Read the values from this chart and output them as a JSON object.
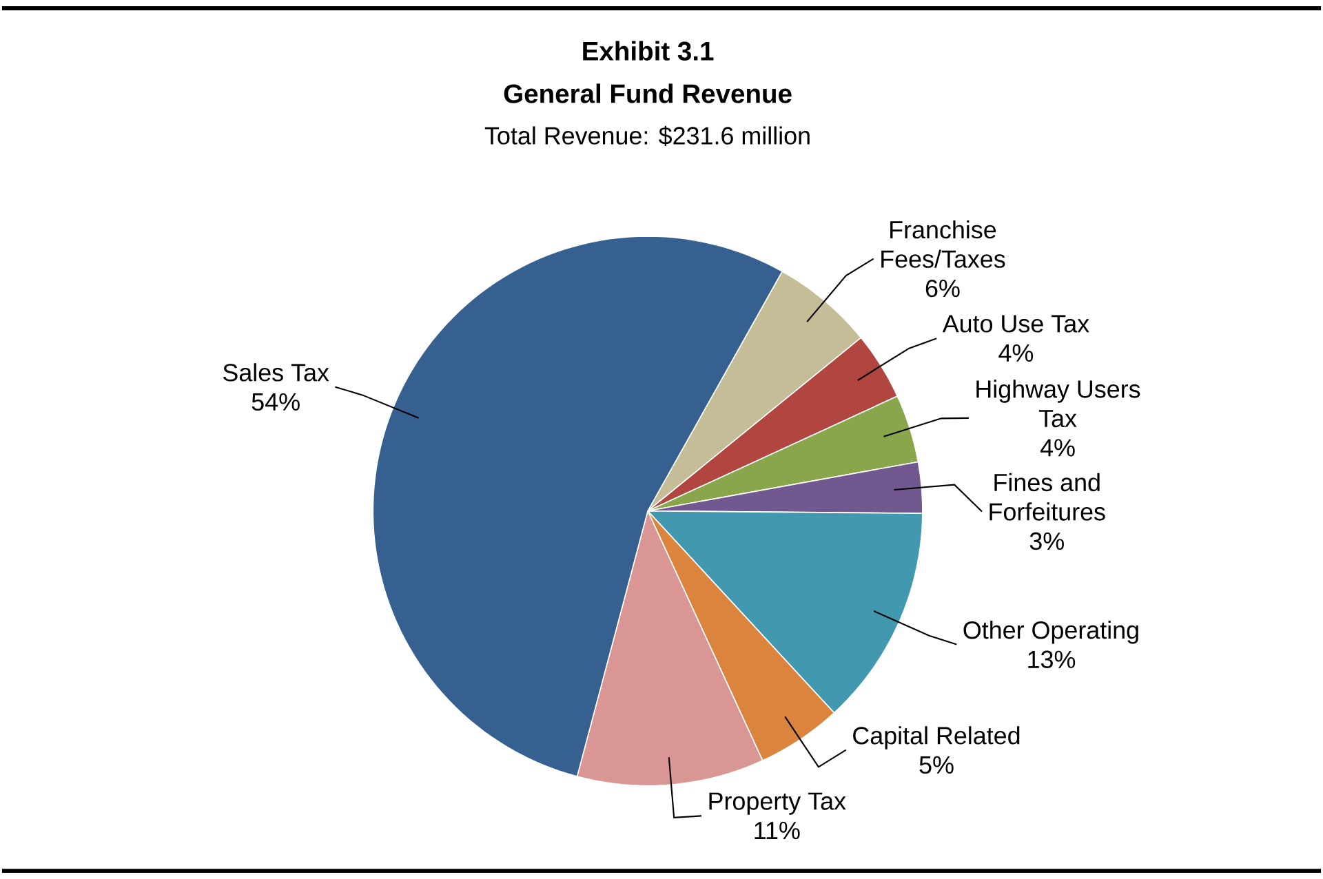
{
  "chart_data": {
    "type": "pie",
    "title": "Exhibit 3.1",
    "subtitle": "General Fund Revenue",
    "annotations": [
      "Total Revenue: $231.6 million"
    ],
    "categories": [
      "Franchise Fees/Taxes",
      "Auto Use Tax",
      "Highway Users Tax",
      "Fines and Forfeitures",
      "Other Operating",
      "Capital Related",
      "Property Tax",
      "Sales Tax"
    ],
    "values": [
      6,
      4,
      4,
      3,
      13,
      5,
      11,
      54
    ],
    "value_labels": [
      "6%",
      "4%",
      "4%",
      "3%",
      "13%",
      "5%",
      "11%",
      "54%"
    ],
    "colors": [
      "#c4bd97",
      "#b0463f",
      "#8aa64c",
      "#71588f",
      "#4198af",
      "#db843d",
      "#d99694",
      "#35608f"
    ]
  }
}
